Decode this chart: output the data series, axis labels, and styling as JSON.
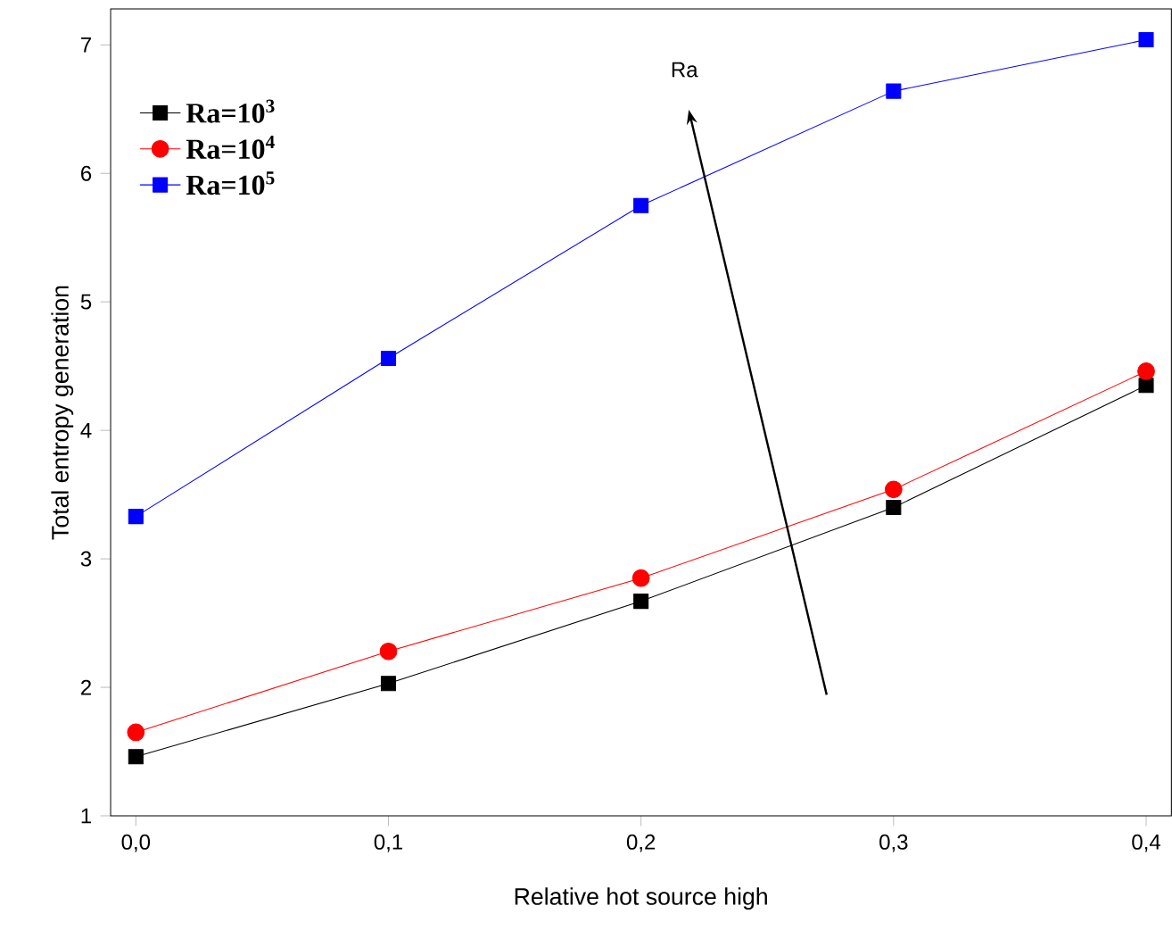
{
  "chart_data": {
    "type": "line",
    "xlabel": "Relative hot source high",
    "ylabel": "Total entropy generation",
    "x": [
      0.0,
      0.1,
      0.2,
      0.3,
      0.4
    ],
    "series": [
      {
        "name": "Ra=10$^{3}$",
        "color": "#000000",
        "marker": "square",
        "values": [
          1.46,
          2.03,
          2.67,
          3.4,
          4.35
        ]
      },
      {
        "name": "Ra=10$^{4}$",
        "color": "#ff0000",
        "marker": "circle",
        "values": [
          1.65,
          2.28,
          2.85,
          3.54,
          4.46
        ]
      },
      {
        "name": "Ra=10$^{5}$",
        "color": "#0000ff",
        "marker": "square",
        "values": [
          3.33,
          4.56,
          5.75,
          6.64,
          7.04
        ]
      }
    ],
    "xlim": [
      -0.01,
      0.41
    ],
    "ylim": [
      1,
      7.28
    ],
    "xticks": [
      {
        "value": 0.0,
        "label": "0,0"
      },
      {
        "value": 0.1,
        "label": "0,1"
      },
      {
        "value": 0.2,
        "label": "0,2"
      },
      {
        "value": 0.3,
        "label": "0,3"
      },
      {
        "value": 0.4,
        "label": "0,4"
      }
    ],
    "yticks": [
      1,
      2,
      3,
      4,
      5,
      6,
      7
    ],
    "annotations": [
      "Ra"
    ],
    "legend": "top left",
    "grid": false,
    "line_style": "solid"
  }
}
